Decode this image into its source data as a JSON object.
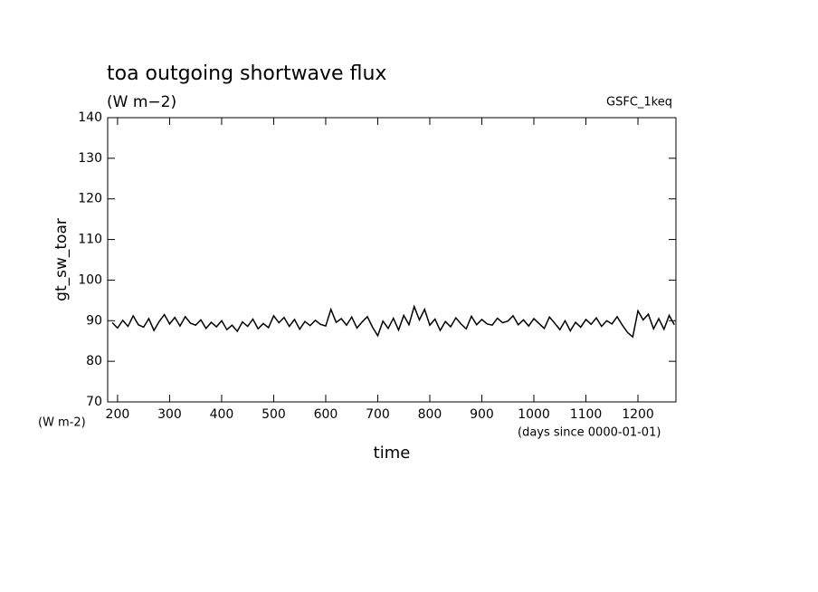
{
  "chart_data": {
    "type": "line",
    "title": "toa outgoing shortwave flux",
    "subtitle": "(W m−2)",
    "annotation": "GSFC_1keq",
    "y_label": "gt_sw_toar",
    "y_units": "(W m-2)",
    "x_label": "time",
    "x_units": "(days since 0000-01-01)",
    "xlim": [
      181,
      1273
    ],
    "ylim": [
      70,
      140
    ],
    "xticks": [
      200,
      300,
      400,
      500,
      600,
      700,
      800,
      900,
      1000,
      1100,
      1200
    ],
    "yticks": [
      70,
      80,
      90,
      100,
      110,
      120,
      130,
      140
    ],
    "grid": false,
    "series": [
      {
        "color": "#000000",
        "x": [
          190,
          200,
          210,
          220,
          230,
          240,
          250,
          260,
          270,
          280,
          290,
          300,
          310,
          320,
          330,
          340,
          350,
          360,
          370,
          380,
          390,
          400,
          410,
          420,
          430,
          440,
          450,
          460,
          470,
          480,
          490,
          500,
          510,
          520,
          530,
          540,
          550,
          560,
          570,
          580,
          590,
          600,
          610,
          620,
          630,
          640,
          650,
          660,
          670,
          680,
          690,
          700,
          710,
          720,
          730,
          740,
          750,
          760,
          770,
          780,
          790,
          800,
          810,
          820,
          830,
          840,
          850,
          860,
          870,
          880,
          890,
          900,
          910,
          920,
          930,
          940,
          950,
          960,
          970,
          980,
          990,
          1000,
          1010,
          1020,
          1030,
          1040,
          1050,
          1060,
          1070,
          1080,
          1090,
          1100,
          1110,
          1120,
          1130,
          1140,
          1150,
          1160,
          1170,
          1180,
          1190,
          1200,
          1210,
          1220,
          1230,
          1240,
          1250,
          1260,
          1270
        ],
        "values": [
          89.5,
          88.2,
          90.1,
          88.6,
          91.2,
          89.0,
          88.4,
          90.5,
          87.6,
          89.8,
          91.5,
          89.2,
          90.8,
          88.7,
          91.0,
          89.4,
          88.9,
          90.2,
          88.1,
          89.6,
          88.5,
          90.0,
          87.8,
          88.9,
          87.4,
          89.7,
          88.6,
          90.4,
          88.0,
          89.3,
          88.3,
          91.2,
          89.5,
          90.8,
          88.6,
          90.3,
          87.9,
          89.8,
          88.8,
          90.1,
          89.1,
          88.7,
          92.8,
          89.6,
          90.5,
          88.9,
          90.9,
          88.2,
          89.7,
          91.0,
          88.4,
          86.3,
          89.9,
          88.1,
          90.6,
          87.7,
          91.3,
          89.0,
          93.5,
          90.2,
          92.8,
          88.9,
          90.4,
          87.6,
          89.8,
          88.5,
          90.7,
          89.2,
          88.0,
          91.1,
          89.0,
          90.3,
          89.2,
          88.9,
          90.6,
          89.5,
          89.9,
          91.2,
          89.0,
          90.2,
          88.7,
          90.5,
          89.3,
          88.1,
          90.9,
          89.4,
          87.8,
          90.0,
          87.5,
          89.6,
          88.4,
          90.3,
          89.1,
          90.7,
          88.6,
          90.0,
          89.2,
          91.0,
          88.9,
          87.1,
          86.0,
          92.4,
          90.2,
          91.6,
          88.0,
          90.5,
          87.9,
          91.3,
          89.0
        ]
      }
    ]
  }
}
